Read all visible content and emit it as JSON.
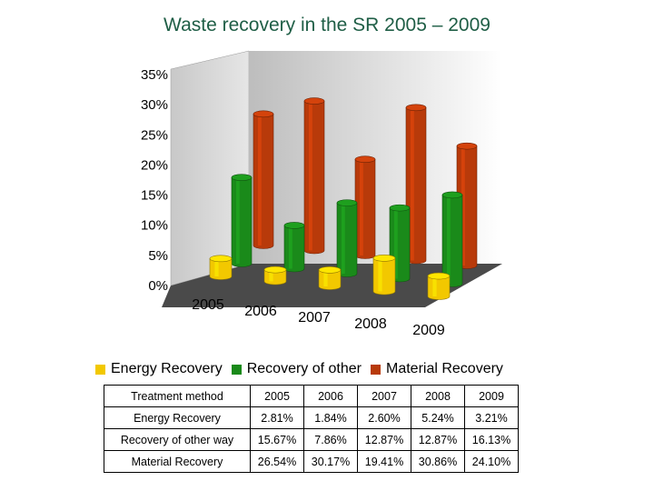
{
  "title": "Waste recovery in the SR 2005 – 2009",
  "chart_data": {
    "type": "bar",
    "subtype": "3d-cylinder",
    "categories": [
      "2005",
      "2006",
      "2007",
      "2008",
      "2009"
    ],
    "series": [
      {
        "name": "Energy Recovery",
        "color": "#f2c800",
        "values": [
          2.81,
          1.84,
          2.6,
          5.24,
          3.21
        ]
      },
      {
        "name": "Recovery of other",
        "color": "#1a8a1a",
        "values": [
          15.67,
          7.86,
          12.87,
          12.87,
          16.13
        ]
      },
      {
        "name": "Material Recovery",
        "color": "#b83a0a",
        "values": [
          26.54,
          30.17,
          19.41,
          30.86,
          24.1
        ]
      }
    ],
    "y_ticks": [
      "35%",
      "30%",
      "25%",
      "20%",
      "15%",
      "10%",
      "5%",
      "0%"
    ],
    "ylim": [
      0,
      35
    ],
    "legend_position": "bottom",
    "grid": false
  },
  "table": {
    "header": [
      "Treatment method",
      "2005",
      "2006",
      "2007",
      "2008",
      "2009"
    ],
    "rows": [
      [
        "Energy Recovery",
        "2.81%",
        "1.84%",
        "2.60%",
        "5.24%",
        "3.21%"
      ],
      [
        "Recovery of other way",
        "15.67%",
        "7.86%",
        "12.87%",
        "12.87%",
        "16.13%"
      ],
      [
        "Material Recovery",
        "26.54%",
        "30.17%",
        "19.41%",
        "30.86%",
        "24.10%"
      ]
    ]
  }
}
